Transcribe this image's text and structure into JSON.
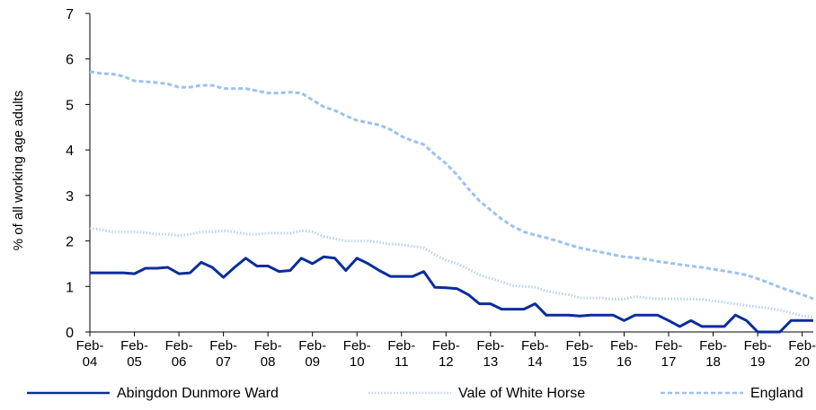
{
  "chart_data": {
    "type": "line",
    "ylabel": "% of all working age adults",
    "categories": [
      "Feb-04",
      null,
      null,
      null,
      "Feb-05",
      null,
      null,
      null,
      "Feb-06",
      null,
      null,
      null,
      "Feb-07",
      null,
      null,
      null,
      "Feb-08",
      null,
      null,
      null,
      "Feb-09",
      null,
      null,
      null,
      "Feb-10",
      null,
      null,
      null,
      "Feb-11",
      null,
      null,
      null,
      "Feb-12",
      null,
      null,
      null,
      "Feb-13",
      null,
      null,
      null,
      "Feb-14",
      null,
      null,
      null,
      "Feb-15",
      null,
      null,
      null,
      "Feb-16",
      null,
      null,
      null,
      "Feb-17",
      null,
      null,
      null,
      "Feb-18",
      null,
      null,
      null,
      "Feb-19",
      null,
      null,
      null,
      "Feb-20",
      null
    ],
    "series": [
      {
        "name": "Abingdon Dunmore Ward",
        "color": "#0a2c9e",
        "dash": "solid",
        "values": [
          1.3,
          1.3,
          1.3,
          1.3,
          1.28,
          1.4,
          1.4,
          1.42,
          1.28,
          1.3,
          1.53,
          1.42,
          1.2,
          1.42,
          1.62,
          1.45,
          1.45,
          1.33,
          1.35,
          1.62,
          1.5,
          1.65,
          1.62,
          1.35,
          1.62,
          1.5,
          1.35,
          1.22,
          1.22,
          1.22,
          1.33,
          0.98,
          0.97,
          0.95,
          0.82,
          0.62,
          0.62,
          0.5,
          0.5,
          0.5,
          0.62,
          0.37,
          0.37,
          0.37,
          0.35,
          0.37,
          0.37,
          0.37,
          0.25,
          0.37,
          0.37,
          0.37,
          0.25,
          0.12,
          0.25,
          0.12,
          0.12,
          0.12,
          0.37,
          0.25,
          0,
          0,
          0,
          0.25,
          0.25,
          0.25
        ]
      },
      {
        "name": "Vale of White Horse",
        "color": "#b9d3f2",
        "dash": "dotted",
        "values": [
          2.28,
          2.25,
          2.2,
          2.2,
          2.2,
          2.18,
          2.15,
          2.15,
          2.12,
          2.15,
          2.2,
          2.2,
          2.22,
          2.2,
          2.15,
          2.15,
          2.17,
          2.17,
          2.17,
          2.22,
          2.2,
          2.1,
          2.05,
          2.0,
          2.0,
          2.0,
          1.97,
          1.93,
          1.92,
          1.88,
          1.85,
          1.7,
          1.58,
          1.5,
          1.38,
          1.25,
          1.18,
          1.1,
          1.02,
          1.0,
          0.98,
          0.9,
          0.85,
          0.82,
          0.75,
          0.75,
          0.75,
          0.72,
          0.72,
          0.78,
          0.75,
          0.73,
          0.73,
          0.73,
          0.72,
          0.72,
          0.68,
          0.65,
          0.62,
          0.58,
          0.55,
          0.52,
          0.48,
          0.42,
          0.35,
          0.33
        ]
      },
      {
        "name": "England",
        "color": "#9cc2ee",
        "dash": "dashed",
        "values": [
          5.72,
          5.68,
          5.67,
          5.62,
          5.52,
          5.5,
          5.48,
          5.45,
          5.38,
          5.38,
          5.42,
          5.42,
          5.35,
          5.35,
          5.35,
          5.3,
          5.25,
          5.25,
          5.27,
          5.25,
          5.1,
          4.95,
          4.87,
          4.75,
          4.65,
          4.6,
          4.55,
          4.45,
          4.3,
          4.2,
          4.12,
          3.9,
          3.7,
          3.45,
          3.15,
          2.88,
          2.68,
          2.48,
          2.32,
          2.2,
          2.13,
          2.07,
          2.0,
          1.92,
          1.85,
          1.8,
          1.75,
          1.7,
          1.65,
          1.63,
          1.6,
          1.55,
          1.52,
          1.48,
          1.45,
          1.42,
          1.38,
          1.34,
          1.3,
          1.25,
          1.17,
          1.08,
          0.98,
          0.9,
          0.82,
          0.73
        ]
      }
    ],
    "ylim": [
      0,
      7
    ],
    "yticks": [
      0,
      1,
      2,
      3,
      4,
      5,
      6,
      7
    ],
    "grid": false
  }
}
